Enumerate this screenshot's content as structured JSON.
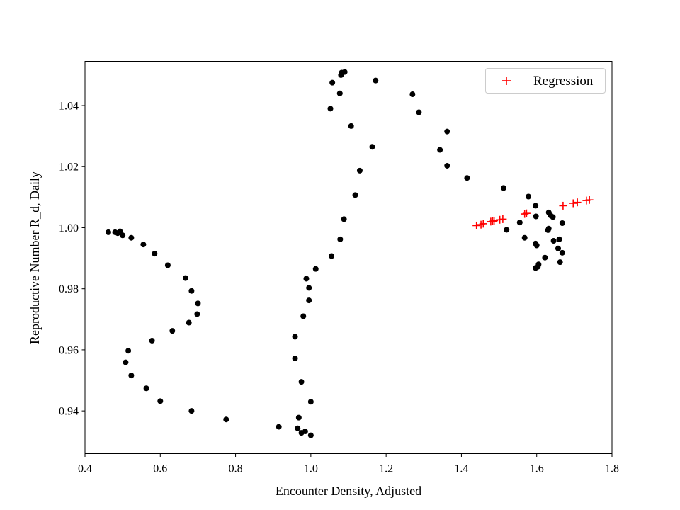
{
  "chart_data": {
    "type": "scatter",
    "title": "",
    "xlabel": "Encounter Density, Adjusted",
    "ylabel": "Reproductive Number R_d, Daily",
    "xlim": [
      0.4,
      1.8
    ],
    "ylim": [
      0.926,
      1.0545
    ],
    "xticks": [
      0.4,
      0.6,
      0.8,
      1.0,
      1.2,
      1.4,
      1.6,
      1.8
    ],
    "xtick_labels": [
      "0.4",
      "0.6",
      "0.8",
      "1.0",
      "1.2",
      "1.4",
      "1.6",
      "1.8"
    ],
    "yticks": [
      0.94,
      0.96,
      0.98,
      1.0,
      1.02,
      1.04
    ],
    "ytick_labels": [
      "0.94",
      "0.96",
      "0.98",
      "1.00",
      "1.02",
      "1.04"
    ],
    "grid": false,
    "legend": {
      "position": "top-right",
      "entries": [
        "Regression"
      ]
    },
    "series": [
      {
        "marker": "dot",
        "color": "#000000",
        "points": [
          [
            0.462,
            0.9985
          ],
          [
            0.48,
            0.9985
          ],
          [
            0.487,
            0.9982
          ],
          [
            0.493,
            0.9988
          ],
          [
            0.5,
            0.9975
          ],
          [
            0.523,
            0.9967
          ],
          [
            0.555,
            0.9945
          ],
          [
            0.585,
            0.9915
          ],
          [
            0.62,
            0.9877
          ],
          [
            0.667,
            0.9835
          ],
          [
            0.683,
            0.9793
          ],
          [
            0.7,
            0.9752
          ],
          [
            0.698,
            0.9717
          ],
          [
            0.676,
            0.9689
          ],
          [
            0.632,
            0.9662
          ],
          [
            0.578,
            0.963
          ],
          [
            0.515,
            0.9597
          ],
          [
            0.508,
            0.9559
          ],
          [
            0.523,
            0.9516
          ],
          [
            0.563,
            0.9474
          ],
          [
            0.6,
            0.9432
          ],
          [
            0.683,
            0.94
          ],
          [
            0.775,
            0.9372
          ],
          [
            0.915,
            0.9348
          ],
          [
            0.965,
            0.9343
          ],
          [
            0.975,
            0.9328
          ],
          [
            0.985,
            0.9333
          ],
          [
            1.0,
            0.932
          ],
          [
            0.968,
            0.9378
          ],
          [
            1.0,
            0.943
          ],
          [
            0.975,
            0.9495
          ],
          [
            0.958,
            0.9572
          ],
          [
            0.958,
            0.9643
          ],
          [
            0.98,
            0.971
          ],
          [
            0.995,
            0.9762
          ],
          [
            0.995,
            0.9803
          ],
          [
            0.988,
            0.9833
          ],
          [
            1.013,
            0.9865
          ],
          [
            1.055,
            0.9907
          ],
          [
            1.078,
            0.9962
          ],
          [
            1.088,
            1.0028
          ],
          [
            1.118,
            1.0107
          ],
          [
            1.13,
            1.0187
          ],
          [
            1.163,
            1.0265
          ],
          [
            1.107,
            1.0333
          ],
          [
            1.052,
            1.039
          ],
          [
            1.077,
            1.044
          ],
          [
            1.057,
            1.0475
          ],
          [
            1.08,
            1.05
          ],
          [
            1.082,
            1.0508
          ],
          [
            1.09,
            1.051
          ],
          [
            1.172,
            1.0482
          ],
          [
            1.27,
            1.0437
          ],
          [
            1.287,
            1.0378
          ],
          [
            1.362,
            1.0315
          ],
          [
            1.343,
            1.0255
          ],
          [
            1.362,
            1.0203
          ],
          [
            1.415,
            1.0163
          ],
          [
            1.512,
            1.013
          ],
          [
            1.578,
            1.0102
          ],
          [
            1.597,
            1.0072
          ],
          [
            1.632,
            1.005
          ],
          [
            1.637,
            1.004
          ],
          [
            1.643,
            1.0035
          ],
          [
            1.598,
            1.0037
          ],
          [
            1.555,
            1.0017
          ],
          [
            1.668,
            1.0015
          ],
          [
            1.632,
            0.9997
          ],
          [
            1.63,
            0.9992
          ],
          [
            1.52,
            0.9993
          ],
          [
            1.568,
            0.9967
          ],
          [
            1.66,
            0.9962
          ],
          [
            1.645,
            0.9957
          ],
          [
            1.597,
            0.9948
          ],
          [
            1.6,
            0.9942
          ],
          [
            1.657,
            0.9932
          ],
          [
            1.668,
            0.9918
          ],
          [
            1.622,
            0.9902
          ],
          [
            1.662,
            0.9887
          ],
          [
            1.605,
            0.988
          ],
          [
            1.603,
            0.9872
          ],
          [
            1.597,
            0.9868
          ]
        ]
      },
      {
        "name": "Regression",
        "marker": "plus",
        "color": "#ff0000",
        "points": [
          [
            1.44,
            1.0007
          ],
          [
            1.452,
            1.001
          ],
          [
            1.458,
            1.0013
          ],
          [
            1.478,
            1.002
          ],
          [
            1.483,
            1.0021
          ],
          [
            1.487,
            1.0023
          ],
          [
            1.502,
            1.0026
          ],
          [
            1.51,
            1.0028
          ],
          [
            1.568,
            1.0045
          ],
          [
            1.573,
            1.0047
          ],
          [
            1.67,
            1.0072
          ],
          [
            1.697,
            1.008
          ],
          [
            1.708,
            1.0083
          ],
          [
            1.732,
            1.0089
          ],
          [
            1.74,
            1.0091
          ]
        ]
      }
    ]
  }
}
